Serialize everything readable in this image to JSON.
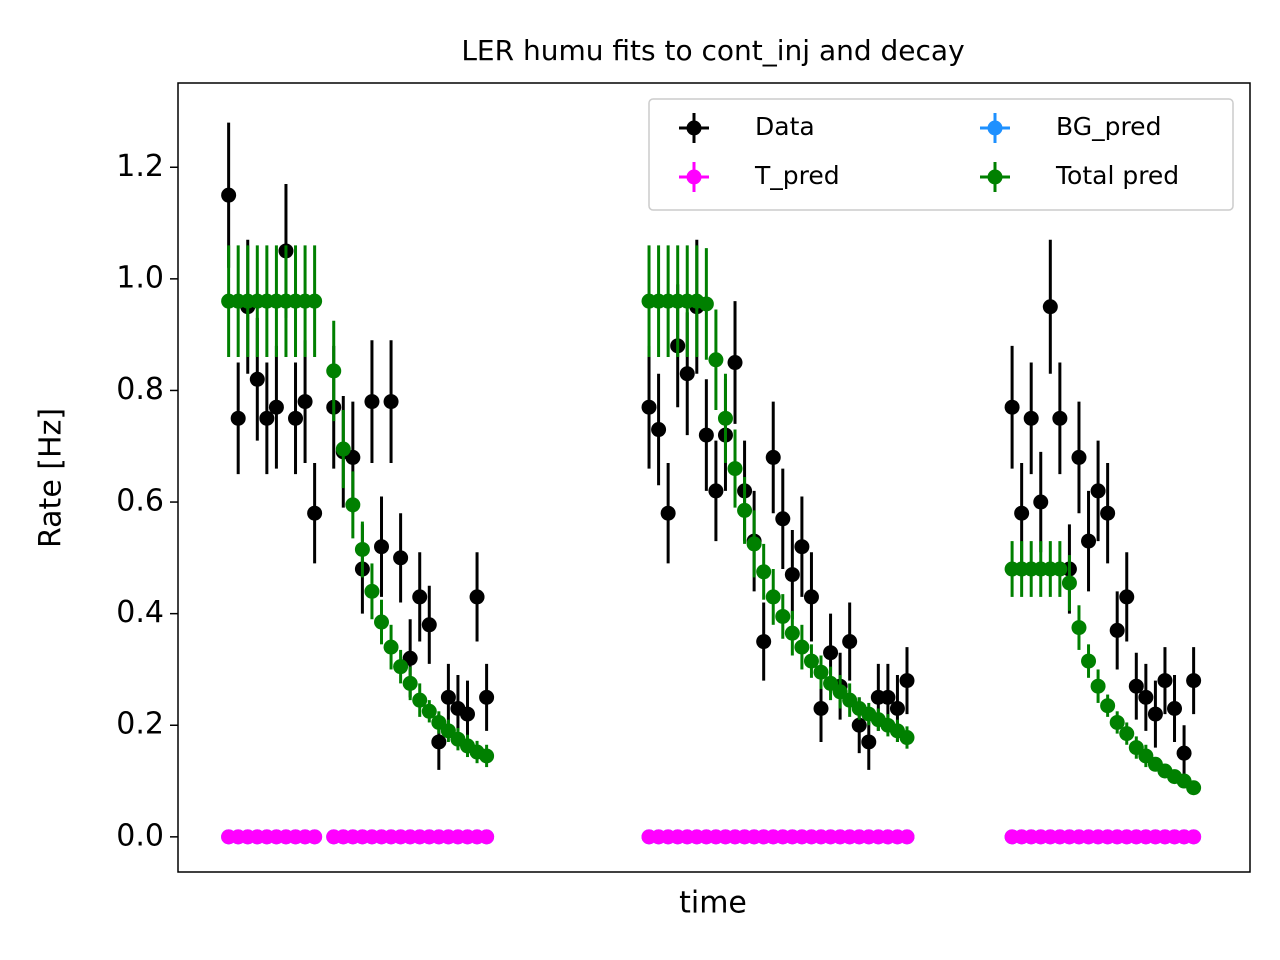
{
  "chart_data": {
    "type": "errorbar",
    "title": "LER humu fits to cont_inj and decay",
    "xlabel": "time",
    "ylabel": "Rate [Hz]",
    "x": [
      0,
      1,
      2,
      3,
      4,
      5,
      6,
      7,
      8,
      9,
      11,
      12,
      13,
      14,
      15,
      16,
      17,
      18,
      19,
      20,
      21,
      22,
      23,
      24,
      25,
      26,
      27,
      44,
      45,
      46,
      47,
      48,
      49,
      50,
      51,
      52,
      53,
      54,
      55,
      56,
      57,
      58,
      59,
      60,
      61,
      62,
      63,
      64,
      65,
      66,
      67,
      68,
      69,
      70,
      71,
      82,
      83,
      84,
      85,
      86,
      87,
      88,
      89,
      90,
      91,
      92,
      93,
      94,
      95,
      96,
      97,
      98,
      99,
      100,
      101
    ],
    "xlim": [
      -5.3,
      106.9
    ],
    "ylim": [
      -0.063,
      1.351
    ],
    "yticks": [
      {
        "value": 0,
        "label": "0.0"
      },
      0.2,
      0.4,
      0.6,
      0.8,
      {
        "value": 1,
        "label": "1.0"
      },
      1.2
    ],
    "legend": {
      "loc": "upper right",
      "ncol": 2
    },
    "series": [
      {
        "name": "Data",
        "color": "#000000",
        "values": [
          1.15,
          0.75,
          0.95,
          0.82,
          0.75,
          0.77,
          1.05,
          0.75,
          0.78,
          0.58,
          0.77,
          0.69,
          0.68,
          0.48,
          0.78,
          0.52,
          0.78,
          0.5,
          0.32,
          0.43,
          0.38,
          0.17,
          0.25,
          0.23,
          0.22,
          0.43,
          0.25,
          0.77,
          0.73,
          0.58,
          0.88,
          0.83,
          0.95,
          0.72,
          0.62,
          0.72,
          0.85,
          0.62,
          0.53,
          0.35,
          0.68,
          0.57,
          0.47,
          0.52,
          0.43,
          0.23,
          0.33,
          0.27,
          0.35,
          0.2,
          0.17,
          0.25,
          0.25,
          0.23,
          0.28,
          0.77,
          0.58,
          0.75,
          0.6,
          0.95,
          0.75,
          0.48,
          0.68,
          0.53,
          0.62,
          0.58,
          0.37,
          0.43,
          0.27,
          0.25,
          0.22,
          0.28,
          0.23,
          0.15,
          0.28
        ],
        "errors": [
          0.13,
          0.1,
          0.12,
          0.11,
          0.1,
          0.11,
          0.12,
          0.1,
          0.11,
          0.09,
          0.11,
          0.1,
          0.1,
          0.08,
          0.11,
          0.09,
          0.11,
          0.08,
          0.07,
          0.08,
          0.07,
          0.05,
          0.06,
          0.06,
          0.06,
          0.08,
          0.06,
          0.11,
          0.1,
          0.09,
          0.11,
          0.11,
          0.12,
          0.1,
          0.09,
          0.1,
          0.11,
          0.09,
          0.09,
          0.07,
          0.1,
          0.09,
          0.08,
          0.09,
          0.08,
          0.06,
          0.07,
          0.06,
          0.07,
          0.05,
          0.05,
          0.06,
          0.06,
          0.06,
          0.06,
          0.11,
          0.09,
          0.1,
          0.09,
          0.12,
          0.1,
          0.08,
          0.1,
          0.09,
          0.09,
          0.09,
          0.07,
          0.08,
          0.06,
          0.06,
          0.06,
          0.06,
          0.06,
          0.05,
          0.06
        ]
      },
      {
        "name": "BG_pred",
        "color": "#1e90ff",
        "values": [
          0,
          0,
          0,
          0,
          0,
          0,
          0,
          0,
          0,
          0,
          0,
          0,
          0,
          0,
          0,
          0,
          0,
          0,
          0,
          0,
          0,
          0,
          0,
          0,
          0,
          0,
          0,
          0,
          0,
          0,
          0,
          0,
          0,
          0,
          0,
          0,
          0,
          0,
          0,
          0,
          0,
          0,
          0,
          0,
          0,
          0,
          0,
          0,
          0,
          0,
          0,
          0,
          0,
          0,
          0,
          0,
          0,
          0,
          0,
          0,
          0,
          0,
          0,
          0,
          0,
          0,
          0,
          0,
          0,
          0,
          0,
          0,
          0,
          0,
          0
        ]
      },
      {
        "name": "T_pred",
        "color": "#ff00ff",
        "values": [
          0,
          0,
          0,
          0,
          0,
          0,
          0,
          0,
          0,
          0,
          0,
          0,
          0,
          0,
          0,
          0,
          0,
          0,
          0,
          0,
          0,
          0,
          0,
          0,
          0,
          0,
          0,
          0,
          0,
          0,
          0,
          0,
          0,
          0,
          0,
          0,
          0,
          0,
          0,
          0,
          0,
          0,
          0,
          0,
          0,
          0,
          0,
          0,
          0,
          0,
          0,
          0,
          0,
          0,
          0,
          0,
          0,
          0,
          0,
          0,
          0,
          0,
          0,
          0,
          0,
          0,
          0,
          0,
          0,
          0,
          0,
          0,
          0,
          0,
          0
        ]
      },
      {
        "name": "Total pred",
        "color": "#008000",
        "values": [
          0.96,
          0.96,
          0.96,
          0.96,
          0.96,
          0.96,
          0.96,
          0.96,
          0.96,
          0.96,
          0.835,
          0.695,
          0.595,
          0.515,
          0.44,
          0.385,
          0.34,
          0.305,
          0.275,
          0.245,
          0.225,
          0.205,
          0.19,
          0.175,
          0.163,
          0.152,
          0.145,
          0.96,
          0.96,
          0.96,
          0.96,
          0.96,
          0.96,
          0.955,
          0.855,
          0.75,
          0.66,
          0.585,
          0.525,
          0.475,
          0.43,
          0.395,
          0.365,
          0.34,
          0.315,
          0.295,
          0.275,
          0.26,
          0.245,
          0.23,
          0.22,
          0.21,
          0.2,
          0.19,
          0.178,
          0.48,
          0.48,
          0.48,
          0.48,
          0.48,
          0.48,
          0.455,
          0.375,
          0.315,
          0.27,
          0.235,
          0.205,
          0.185,
          0.16,
          0.145,
          0.13,
          0.118,
          0.108,
          0.1,
          0.088
        ],
        "errors": [
          0.1,
          0.1,
          0.1,
          0.1,
          0.1,
          0.1,
          0.1,
          0.1,
          0.1,
          0.1,
          0.09,
          0.07,
          0.06,
          0.05,
          0.05,
          0.04,
          0.04,
          0.03,
          0.03,
          0.03,
          0.02,
          0.02,
          0.02,
          0.02,
          0.02,
          0.02,
          0.02,
          0.1,
          0.1,
          0.1,
          0.1,
          0.1,
          0.1,
          0.1,
          0.09,
          0.08,
          0.07,
          0.06,
          0.06,
          0.05,
          0.05,
          0.04,
          0.04,
          0.04,
          0.03,
          0.03,
          0.03,
          0.03,
          0.03,
          0.02,
          0.02,
          0.02,
          0.02,
          0.02,
          0.02,
          0.05,
          0.05,
          0.05,
          0.05,
          0.05,
          0.05,
          0.05,
          0.04,
          0.03,
          0.03,
          0.02,
          0.02,
          0.02,
          0.02,
          0.02,
          0.01,
          0.01,
          0.01,
          0.01,
          0.01
        ]
      }
    ]
  }
}
